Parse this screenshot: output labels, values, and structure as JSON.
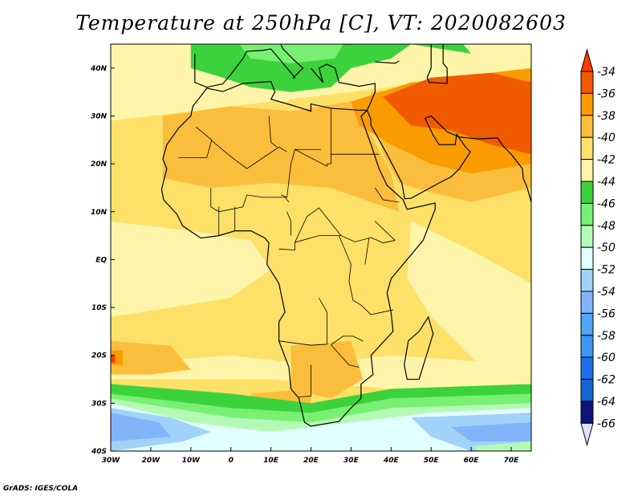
{
  "title": "Temperature at 250hPa [C], VT: 2020082603",
  "credit": "GrADS: IGES/COLA",
  "lon_ticks": [
    "30W",
    "20W",
    "10W",
    "0",
    "10E",
    "20E",
    "30E",
    "40E",
    "50E",
    "60E",
    "70E"
  ],
  "lon_values": [
    -30,
    -20,
    -10,
    0,
    10,
    20,
    30,
    40,
    50,
    60,
    70
  ],
  "lat_ticks": [
    "40N",
    "30N",
    "20N",
    "10N",
    "EQ",
    "10S",
    "20S",
    "30S",
    "40S"
  ],
  "lat_values": [
    40,
    30,
    20,
    10,
    0,
    -10,
    -20,
    -30,
    -40
  ],
  "extent": {
    "lon": [
      -30,
      75
    ],
    "lat": [
      -40,
      45
    ]
  },
  "colorbar": {
    "labels": [
      "-34",
      "-36",
      "-38",
      "-40",
      "-42",
      "-44",
      "-46",
      "-48",
      "-50",
      "-52",
      "-54",
      "-56",
      "-58",
      "-60",
      "-62",
      "-64",
      "-66"
    ],
    "over_color": "#ff3c00",
    "under_color": "#e1e1ff",
    "colors": [
      "#f05a00",
      "#fa9b00",
      "#fbbe3c",
      "#fde068",
      "#fff5aa",
      "#3cd23c",
      "#78f073",
      "#b4fab4",
      "#e1ffff",
      "#a0d2fa",
      "#82b4fa",
      "#50a5f5",
      "#3c96f5",
      "#1e6eeb",
      "#1464d2",
      "#0f1478"
    ]
  }
}
